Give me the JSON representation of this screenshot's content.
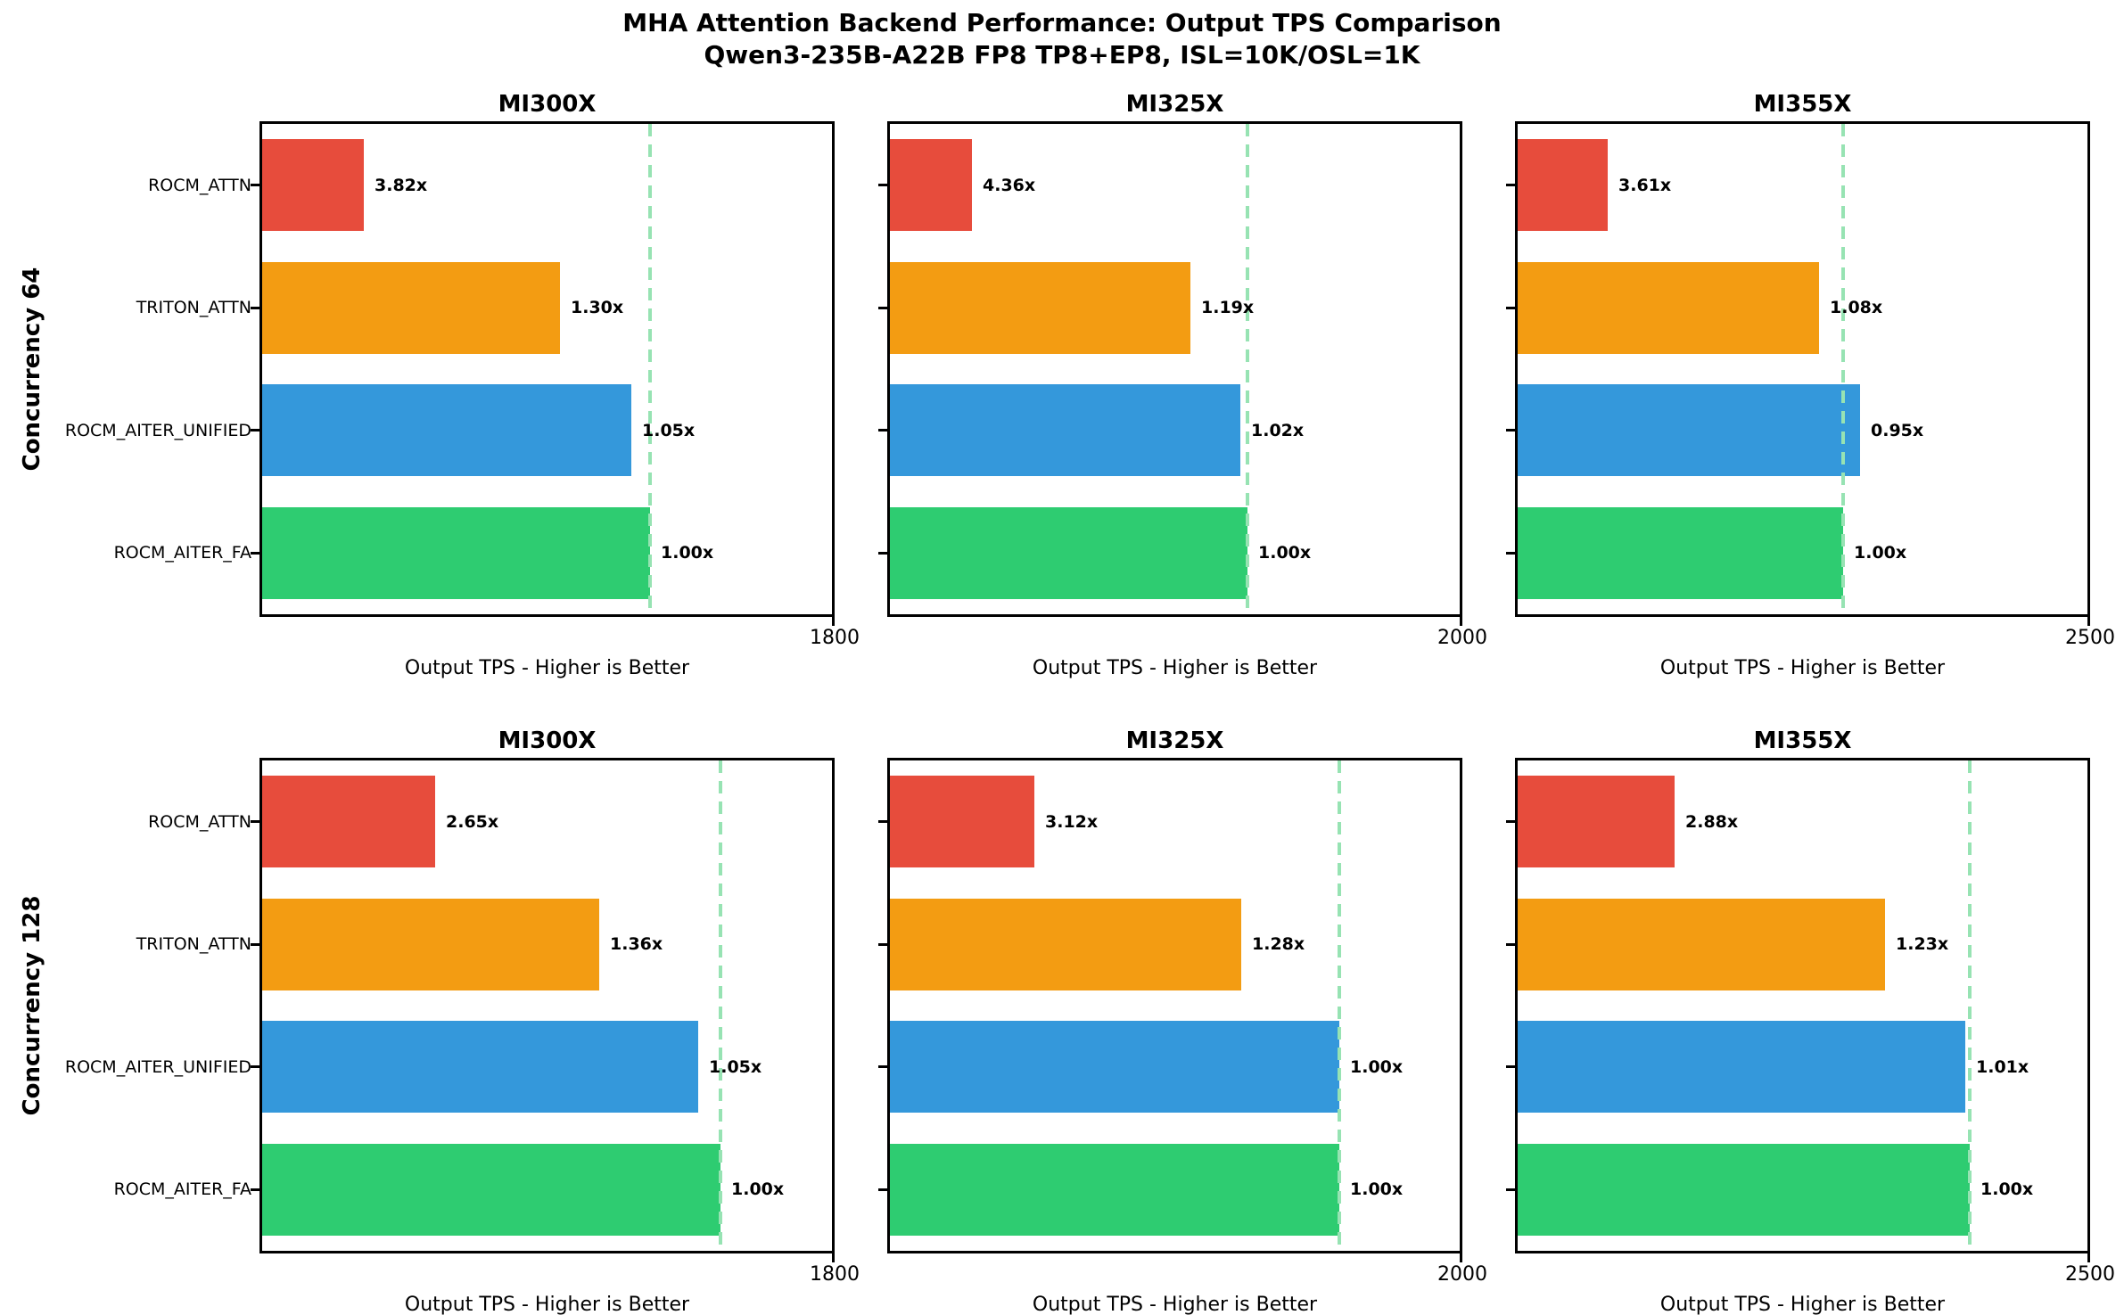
{
  "suptitle": {
    "line1": "MHA Attention Backend Performance: Output TPS Comparison",
    "line2": "Qwen3-235B-A22B FP8 TP8+EP8, ISL=10K/OSL=1K"
  },
  "chart_data": {
    "type": "bar",
    "orientation": "horizontal",
    "grid": false,
    "legend": false,
    "xlabel": "Output TPS - Higher is Better",
    "categories_top_to_bottom": [
      "ROCM_ATTN",
      "TRITON_ATTN",
      "ROCM_AITER_UNIFIED",
      "ROCM_AITER_FA"
    ],
    "bar_colors": {
      "ROCM_ATTN": "#E74C3C",
      "TRITON_ATTN": "#F39C12",
      "ROCM_AITER_UNIFIED": "#3498DB",
      "ROCM_AITER_FA": "#2ECC71"
    },
    "baseline_dash_color": "#97E3B3",
    "baseline_note": "dashed vertical line marks ROCM_AITER_FA (1.00x) output TPS",
    "rows": [
      {
        "ylabel": "Concurrency 64",
        "panels": [
          {
            "title": "MI300X",
            "xlim": [
              0,
              1800
            ],
            "xtick_label": "1800",
            "baseline_tps_est": 1224,
            "bars": [
              {
                "backend": "ROCM_ATTN",
                "label": "3.82x",
                "tps_est": 320
              },
              {
                "backend": "TRITON_ATTN",
                "label": "1.30x",
                "tps_est": 941
              },
              {
                "backend": "ROCM_AITER_UNIFIED",
                "label": "1.05x",
                "tps_est": 1166
              },
              {
                "backend": "ROCM_AITER_FA",
                "label": "1.00x",
                "tps_est": 1224
              }
            ]
          },
          {
            "title": "MI325X",
            "xlim": [
              0,
              2000
            ],
            "xtick_label": "2000",
            "baseline_tps_est": 1254,
            "bars": [
              {
                "backend": "ROCM_ATTN",
                "label": "4.36x",
                "tps_est": 288
              },
              {
                "backend": "TRITON_ATTN",
                "label": "1.19x",
                "tps_est": 1054
              },
              {
                "backend": "ROCM_AITER_UNIFIED",
                "label": "1.02x",
                "tps_est": 1229
              },
              {
                "backend": "ROCM_AITER_FA",
                "label": "1.00x",
                "tps_est": 1254
              }
            ]
          },
          {
            "title": "MI355X",
            "xlim": [
              0,
              2500
            ],
            "xtick_label": "2500",
            "baseline_tps_est": 1427,
            "bars": [
              {
                "backend": "ROCM_ATTN",
                "label": "3.61x",
                "tps_est": 395
              },
              {
                "backend": "TRITON_ATTN",
                "label": "1.08x",
                "tps_est": 1321
              },
              {
                "backend": "ROCM_AITER_UNIFIED",
                "label": "0.95x",
                "tps_est": 1502
              },
              {
                "backend": "ROCM_AITER_FA",
                "label": "1.00x",
                "tps_est": 1427
              }
            ]
          }
        ]
      },
      {
        "ylabel": "Concurrency 128",
        "panels": [
          {
            "title": "MI300X",
            "xlim": [
              0,
              1800
            ],
            "xtick_label": "1800",
            "baseline_tps_est": 1447,
            "bars": [
              {
                "backend": "ROCM_ATTN",
                "label": "2.65x",
                "tps_est": 546
              },
              {
                "backend": "TRITON_ATTN",
                "label": "1.36x",
                "tps_est": 1064
              },
              {
                "backend": "ROCM_AITER_UNIFIED",
                "label": "1.05x",
                "tps_est": 1378
              },
              {
                "backend": "ROCM_AITER_FA",
                "label": "1.00x",
                "tps_est": 1447
              }
            ]
          },
          {
            "title": "MI325X",
            "xlim": [
              0,
              2000
            ],
            "xtick_label": "2000",
            "baseline_tps_est": 1578,
            "bars": [
              {
                "backend": "ROCM_ATTN",
                "label": "3.12x",
                "tps_est": 506
              },
              {
                "backend": "TRITON_ATTN",
                "label": "1.28x",
                "tps_est": 1233
              },
              {
                "backend": "ROCM_AITER_UNIFIED",
                "label": "1.00x",
                "tps_est": 1578
              },
              {
                "backend": "ROCM_AITER_FA",
                "label": "1.00x",
                "tps_est": 1578
              }
            ]
          },
          {
            "title": "MI355X",
            "xlim": [
              0,
              2500
            ],
            "xtick_label": "2500",
            "baseline_tps_est": 1984,
            "bars": [
              {
                "backend": "ROCM_ATTN",
                "label": "2.88x",
                "tps_est": 689
              },
              {
                "backend": "TRITON_ATTN",
                "label": "1.23x",
                "tps_est": 1613
              },
              {
                "backend": "ROCM_AITER_UNIFIED",
                "label": "1.01x",
                "tps_est": 1964
              },
              {
                "backend": "ROCM_AITER_FA",
                "label": "1.00x",
                "tps_est": 1984
              }
            ]
          }
        ]
      }
    ]
  }
}
